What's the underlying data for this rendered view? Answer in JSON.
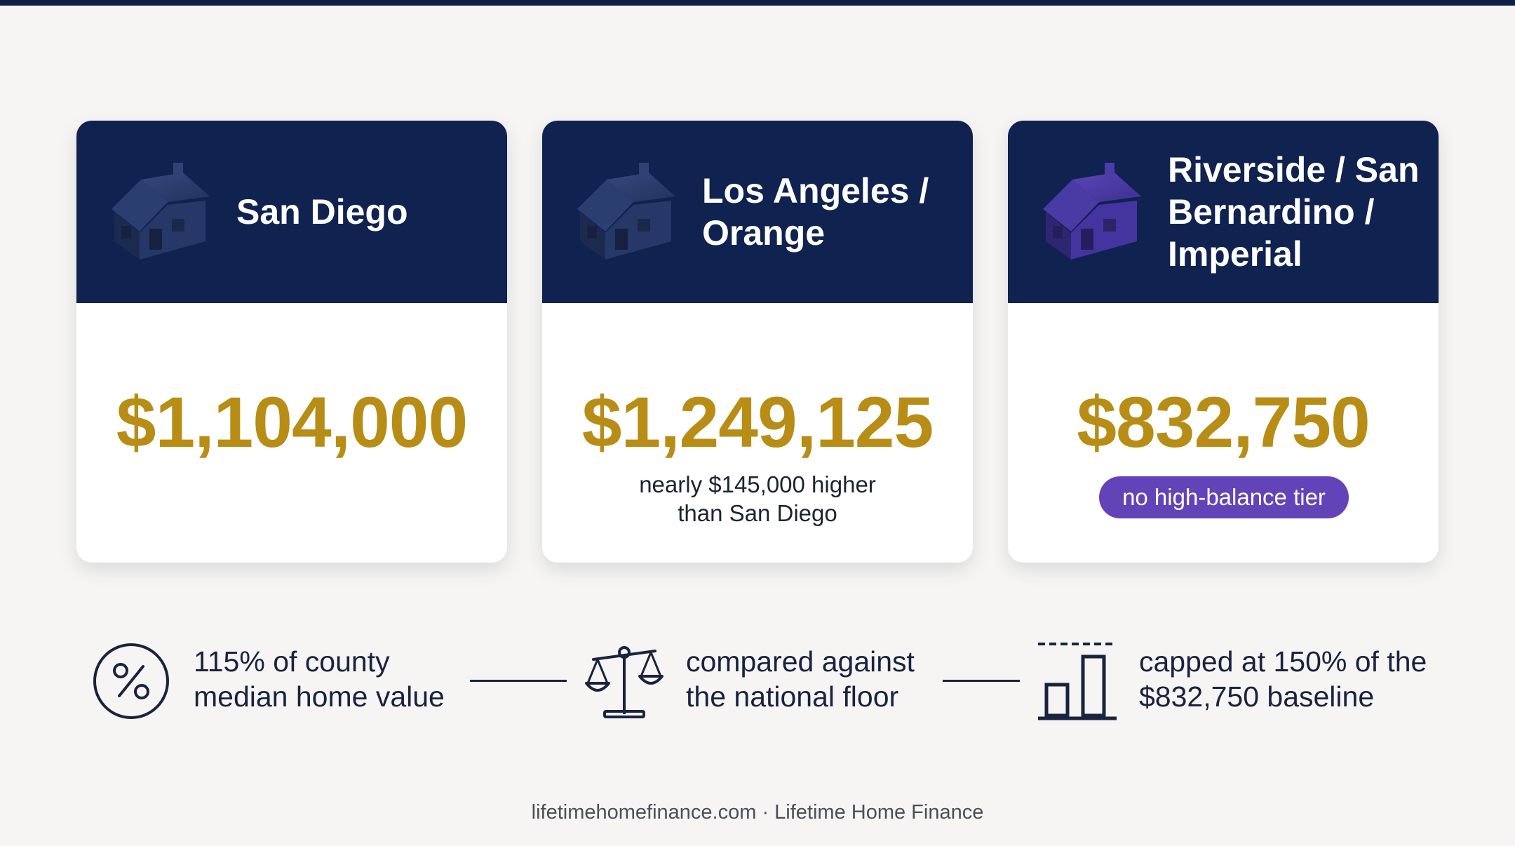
{
  "colors": {
    "navy": "#0f2250",
    "gold": "#b88d16",
    "purple_badge": "#6244b8",
    "background": "#f6f5f3"
  },
  "cards": [
    {
      "icon": "house-icon",
      "title_lines": [
        "San Diego"
      ],
      "amount": "$1,104,000",
      "note_lines": []
    },
    {
      "icon": "house-icon",
      "title_lines": [
        "Los Angeles /",
        "Orange"
      ],
      "amount": "$1,249,125",
      "note_lines": [
        "nearly $145,000 higher",
        "than San Diego"
      ]
    },
    {
      "icon": "house-icon",
      "title_lines": [
        "Riverside / San",
        "Bernardino /",
        "Imperial"
      ],
      "amount": "$832,750",
      "badge": "no high-balance tier"
    }
  ],
  "steps": [
    {
      "icon": "percent-icon",
      "lines": [
        "115% of county",
        "median home value"
      ]
    },
    {
      "icon": "scales-icon",
      "lines": [
        "compared against",
        "the national floor"
      ]
    },
    {
      "icon": "capped-bar-chart-icon",
      "lines": [
        "capped at 150% of the",
        "$832,750 baseline"
      ]
    }
  ],
  "footer": "lifetimehomefinance.com · Lifetime Home Finance"
}
